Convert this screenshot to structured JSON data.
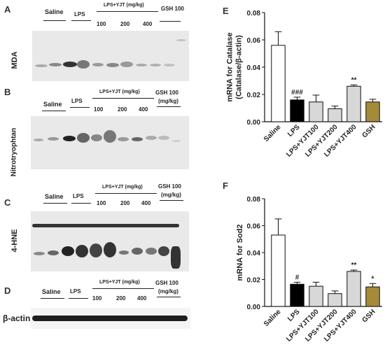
{
  "left_panels": [
    {
      "id": "A",
      "row_label": "MDA",
      "groups": [
        "Saline",
        "LPS",
        "LPS+YJT (mg/kg)",
        "GSH 100"
      ],
      "doses": [
        "100",
        "200",
        "400"
      ],
      "gsh_unit": ""
    },
    {
      "id": "B",
      "row_label": "Nitrotryophtan",
      "groups": [
        "Saline",
        "LPS",
        "LPS+YJT (mg/kg)",
        "GSH 100"
      ],
      "doses": [
        "100",
        "200",
        "400"
      ],
      "gsh_unit": "(mg/kg)"
    },
    {
      "id": "C",
      "row_label": "4-HNE",
      "groups": [
        "Saline",
        "LPS",
        "LPS+YJT (mg/kg)",
        "GSH 100"
      ],
      "doses": [
        "100",
        "200",
        "400"
      ],
      "gsh_unit": "(mg/kg)"
    },
    {
      "id": "D",
      "row_label": "β-actin",
      "groups": [
        "Saline",
        "LPS",
        "LPS+YJT (mg/kg)",
        "GSH 100"
      ],
      "doses": [
        "100",
        "200",
        "400"
      ],
      "gsh_unit": "(mg/kg)"
    }
  ],
  "chart_data": [
    {
      "type": "bar",
      "panel": "E",
      "title": "",
      "xlabel": "",
      "ylabel_line1": "mRNA for Catalase",
      "ylabel_line2": "(Catalase/β-actin)",
      "categories": [
        "Saline",
        "LPS",
        "LPS+YJT100",
        "LPS+YJT200",
        "LPS+YJT400",
        "GSH"
      ],
      "values": [
        0.056,
        0.016,
        0.0145,
        0.0095,
        0.026,
        0.0145
      ],
      "errors": [
        0.01,
        0.002,
        0.005,
        0.002,
        0.001,
        0.002
      ],
      "annotations": [
        "",
        "###",
        "",
        "",
        "**",
        ""
      ],
      "yticks": [
        "0.00",
        "0.02",
        "0.04",
        "0.06",
        "0.08"
      ],
      "ylim": [
        0,
        0.08
      ],
      "grid": false,
      "colors": [
        "#ffffff",
        "#000000",
        "#d8d8d8",
        "#d8d8d8",
        "#d8d8d8",
        "#a58a3a"
      ]
    },
    {
      "type": "bar",
      "panel": "F",
      "title": "",
      "xlabel": "",
      "ylabel_line1": "mRNA for Sod2",
      "ylabel_line2": "",
      "categories": [
        "Saline",
        "LPS",
        "LPS+YJT100",
        "LPS+YJT200",
        "LPS+YJT400",
        "GSH"
      ],
      "values": [
        0.053,
        0.0165,
        0.015,
        0.0095,
        0.026,
        0.0145
      ],
      "errors": [
        0.012,
        0.0015,
        0.003,
        0.002,
        0.001,
        0.0025
      ],
      "annotations": [
        "",
        "#",
        "",
        "",
        "**",
        "*"
      ],
      "yticks": [
        "0.00",
        "0.02",
        "0.04",
        "0.06",
        "0.08"
      ],
      "ylim": [
        0,
        0.08
      ],
      "grid": false,
      "colors": [
        "#ffffff",
        "#000000",
        "#d8d8d8",
        "#d8d8d8",
        "#d8d8d8",
        "#a58a3a"
      ]
    }
  ]
}
